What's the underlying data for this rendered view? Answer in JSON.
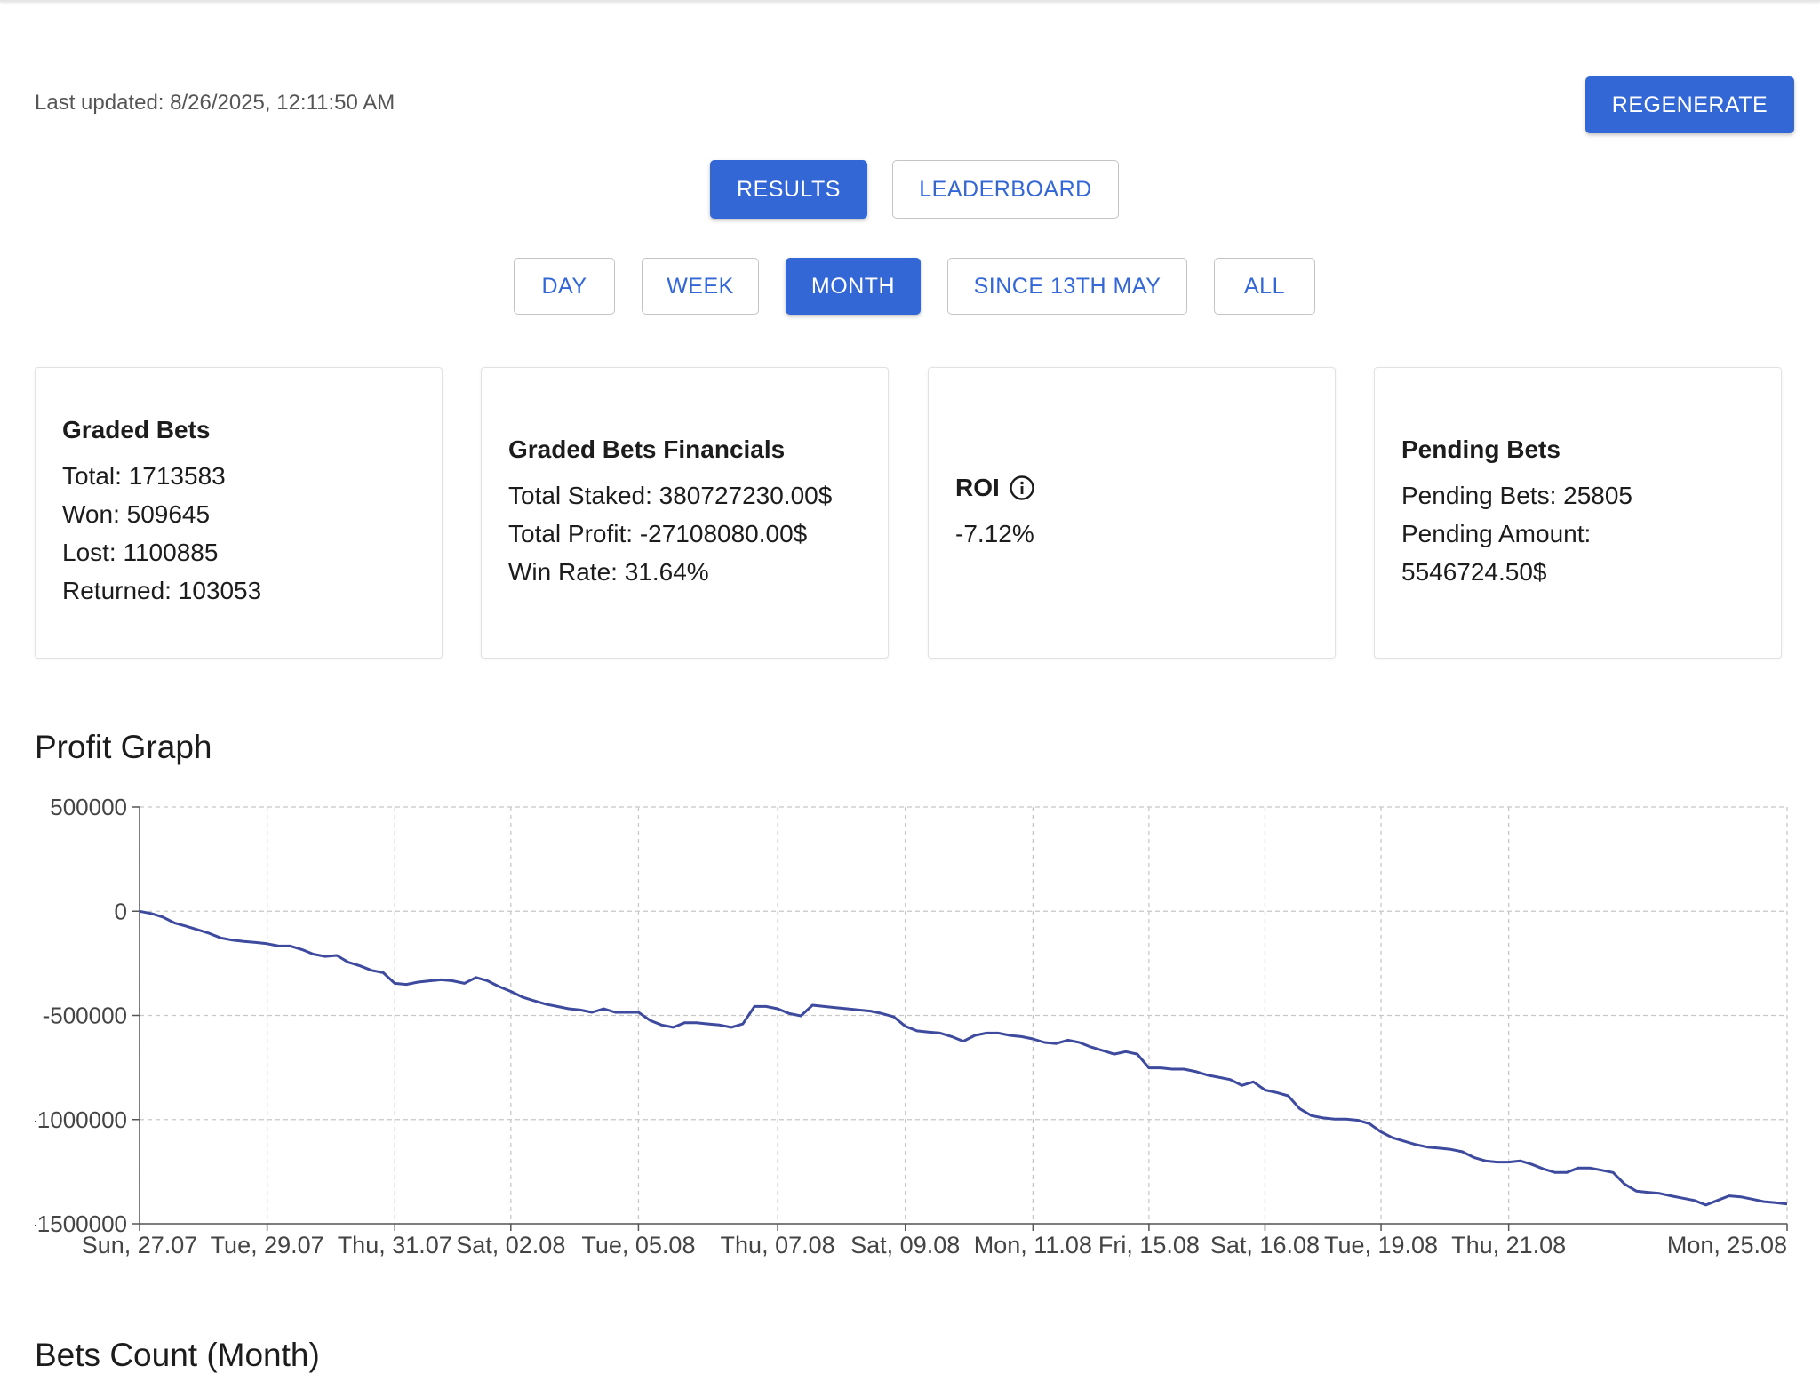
{
  "header": {
    "last_updated": "Last updated: 8/26/2025, 12:11:50 AM"
  },
  "buttons": {
    "regenerate": "REGENERATE",
    "views": [
      {
        "label": "RESULTS",
        "selected": true
      },
      {
        "label": "LEADERBOARD",
        "selected": false
      }
    ],
    "periods": [
      {
        "label": "DAY",
        "selected": false
      },
      {
        "label": "WEEK",
        "selected": false
      },
      {
        "label": "MONTH",
        "selected": true
      },
      {
        "label": "SINCE 13TH MAY",
        "selected": false
      },
      {
        "label": "ALL",
        "selected": false
      }
    ]
  },
  "cards": [
    {
      "title": "Graded Bets",
      "lines": [
        "Total: 1713583",
        "Won: 509645",
        "Lost: 1100885",
        "Returned: 103053"
      ]
    },
    {
      "title": "Graded Bets Financials",
      "lines": [
        "Total Staked: 380727230.00$",
        "Total Profit: -27108080.00$",
        "Win Rate: 31.64%"
      ]
    },
    {
      "title": "ROI",
      "lines": [
        "-7.12%"
      ]
    },
    {
      "title": "Pending Bets",
      "lines": [
        "Pending Bets: 25805",
        "Pending Amount: 5546724.50$"
      ]
    }
  ],
  "chart_data": {
    "type": "line",
    "title": "Profit Graph",
    "color": "#3d4a9e",
    "grid": true,
    "ylim": [
      -1500000,
      500000
    ],
    "yticks": [
      500000,
      0,
      -500000,
      -1000000,
      -1500000
    ],
    "categories": [
      "Sun, 27.07",
      null,
      null,
      null,
      null,
      null,
      null,
      null,
      null,
      null,
      null,
      "Tue, 29.07",
      null,
      null,
      null,
      null,
      null,
      null,
      null,
      null,
      null,
      null,
      "Thu, 31.07",
      null,
      null,
      null,
      null,
      null,
      null,
      null,
      null,
      null,
      "Sat, 02.08",
      null,
      null,
      null,
      null,
      null,
      null,
      null,
      null,
      null,
      null,
      "Tue, 05.08",
      null,
      null,
      null,
      null,
      null,
      null,
      null,
      null,
      null,
      null,
      null,
      "Thu, 07.08",
      null,
      null,
      null,
      null,
      null,
      null,
      null,
      null,
      null,
      null,
      "Sat, 09.08",
      null,
      null,
      null,
      null,
      null,
      null,
      null,
      null,
      null,
      null,
      "Mon, 11.08",
      null,
      null,
      null,
      null,
      null,
      null,
      null,
      null,
      null,
      "Fri, 15.08",
      null,
      null,
      null,
      null,
      null,
      null,
      null,
      null,
      null,
      "Sat, 16.08",
      null,
      null,
      null,
      null,
      null,
      null,
      null,
      null,
      null,
      "Tue, 19.08",
      null,
      null,
      null,
      null,
      null,
      null,
      null,
      null,
      null,
      null,
      "Thu, 21.08",
      null,
      null,
      null,
      null,
      null,
      null,
      null,
      null,
      null,
      null,
      null,
      null,
      null,
      null,
      null,
      null,
      null,
      null,
      null,
      null,
      null,
      null,
      null,
      "Mon, 25.08"
    ],
    "values": [
      0,
      -11000,
      -28000,
      -56000,
      -72000,
      -89000,
      -106000,
      -128000,
      -139000,
      -145000,
      -150000,
      -156000,
      -167000,
      -167000,
      -184000,
      -206000,
      -217000,
      -212000,
      -245000,
      -262000,
      -284000,
      -295000,
      -346000,
      -351000,
      -340000,
      -334000,
      -329000,
      -334000,
      -346000,
      -318000,
      -334000,
      -362000,
      -385000,
      -412000,
      -429000,
      -446000,
      -457000,
      -468000,
      -474000,
      -485000,
      -468000,
      -485000,
      -485000,
      -485000,
      -524000,
      -546000,
      -557000,
      -535000,
      -535000,
      -541000,
      -546000,
      -557000,
      -541000,
      -457000,
      -457000,
      -468000,
      -491000,
      -502000,
      -451000,
      -457000,
      -463000,
      -468000,
      -474000,
      -479000,
      -491000,
      -507000,
      -552000,
      -574000,
      -580000,
      -585000,
      -602000,
      -624000,
      -596000,
      -585000,
      -585000,
      -596000,
      -602000,
      -613000,
      -630000,
      -635000,
      -619000,
      -630000,
      -652000,
      -669000,
      -686000,
      -674000,
      -686000,
      -752000,
      -752000,
      -758000,
      -758000,
      -769000,
      -786000,
      -797000,
      -808000,
      -836000,
      -819000,
      -858000,
      -870000,
      -886000,
      -948000,
      -981000,
      -992000,
      -998000,
      -998000,
      -1003000,
      -1020000,
      -1059000,
      -1087000,
      -1104000,
      -1120000,
      -1132000,
      -1137000,
      -1143000,
      -1154000,
      -1182000,
      -1198000,
      -1204000,
      -1204000,
      -1198000,
      -1215000,
      -1237000,
      -1254000,
      -1254000,
      -1232000,
      -1232000,
      -1243000,
      -1254000,
      -1310000,
      -1343000,
      -1349000,
      -1354000,
      -1366000,
      -1377000,
      -1388000,
      -1410000,
      -1388000,
      -1366000,
      -1371000,
      -1382000,
      -1394000,
      -1399000,
      -1405000
    ]
  },
  "next_section": {
    "title": "Bets Count (Month)"
  }
}
